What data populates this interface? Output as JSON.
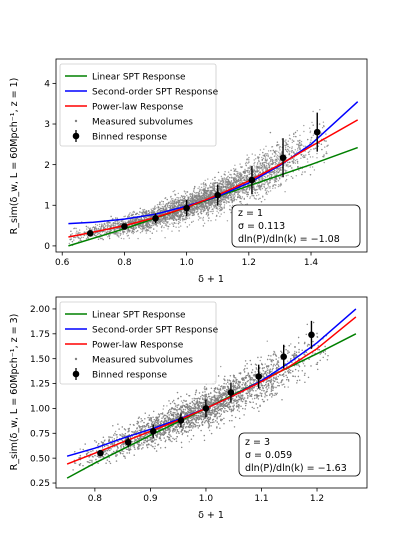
{
  "chart_data": [
    {
      "type": "scatter",
      "xlabel": "δ + 1",
      "ylabel": "R_sim(δ_w, L = 60Mpch⁻¹, z = 1)",
      "xlim": [
        0.58,
        1.58
      ],
      "ylim": [
        -0.15,
        4.6
      ],
      "x_ticks": [
        0.6,
        0.8,
        1.0,
        1.2,
        1.4
      ],
      "x_tick_labels": [
        "0.6",
        "0.8",
        "1.0",
        "1.2",
        "1.4"
      ],
      "y_ticks": [
        0,
        1,
        2,
        3,
        4
      ],
      "y_tick_labels": [
        "0",
        "1",
        "2",
        "3",
        "4"
      ],
      "legend_position": "top-left",
      "legend": [
        "Linear SPT Response",
        "Second-order SPT Response",
        "Power-law Response",
        "Measured subvolumes",
        "Binned response"
      ],
      "series": [
        {
          "name": "Linear SPT Response",
          "color": "#008000",
          "x": [
            0.62,
            0.8,
            1.0,
            1.2,
            1.4,
            1.55
          ],
          "y": [
            0.0,
            0.42,
            0.95,
            1.48,
            2.0,
            2.42
          ]
        },
        {
          "name": "Second-order SPT Response",
          "color": "#0000ff",
          "x": [
            0.62,
            0.7,
            0.8,
            0.9,
            1.0,
            1.1,
            1.2,
            1.3,
            1.4,
            1.55
          ],
          "y": [
            0.55,
            0.58,
            0.66,
            0.78,
            0.98,
            1.22,
            1.55,
            1.98,
            2.5,
            3.55
          ]
        },
        {
          "name": "Power-law Response",
          "color": "#ff0000",
          "x": [
            0.62,
            0.7,
            0.8,
            0.9,
            1.0,
            1.1,
            1.2,
            1.3,
            1.4,
            1.55
          ],
          "y": [
            0.22,
            0.34,
            0.5,
            0.7,
            0.95,
            1.25,
            1.6,
            2.0,
            2.45,
            3.1
          ]
        },
        {
          "name": "Binned response",
          "color": "#000000",
          "x": [
            0.69,
            0.8,
            0.9,
            1.0,
            1.1,
            1.21,
            1.31,
            1.42
          ],
          "y": [
            0.31,
            0.48,
            0.68,
            0.93,
            1.25,
            1.62,
            2.17,
            2.8
          ],
          "yerr": [
            0.05,
            0.07,
            0.12,
            0.2,
            0.26,
            0.35,
            0.48,
            0.48
          ]
        }
      ],
      "scatter_cloud": {
        "name": "Measured subvolumes",
        "color": "#808080",
        "x_range": [
          0.64,
          1.44
        ],
        "count": 5000
      },
      "annotation": [
        "z = 1",
        "σ = 0.113",
        "dln(P)/dln(k) = −1.08"
      ]
    },
    {
      "type": "scatter",
      "xlabel": "δ + 1",
      "ylabel": "R_sim(δ_w, L = 60Mpch⁻¹, z = 3)",
      "xlim": [
        0.73,
        1.29
      ],
      "ylim": [
        0.2,
        2.12
      ],
      "x_ticks": [
        0.8,
        0.9,
        1.0,
        1.1,
        1.2
      ],
      "x_tick_labels": [
        "0.8",
        "0.9",
        "1.0",
        "1.1",
        "1.2"
      ],
      "y_ticks": [
        0.25,
        0.5,
        0.75,
        1.0,
        1.25,
        1.5,
        1.75,
        2.0
      ],
      "y_tick_labels": [
        "0.25",
        "0.50",
        "0.75",
        "1.00",
        "1.25",
        "1.50",
        "1.75",
        "2.00"
      ],
      "legend_position": "top-left",
      "legend": [
        "Linear SPT Response",
        "Second-order SPT Response",
        "Power-law Response",
        "Measured subvolumes",
        "Binned response"
      ],
      "series": [
        {
          "name": "Linear SPT Response",
          "color": "#008000",
          "x": [
            0.75,
            0.8,
            0.9,
            1.0,
            1.1,
            1.2,
            1.27
          ],
          "y": [
            0.3,
            0.45,
            0.73,
            1.0,
            1.28,
            1.55,
            1.75
          ]
        },
        {
          "name": "Second-order SPT Response",
          "color": "#0000ff",
          "x": [
            0.75,
            0.8,
            0.85,
            0.9,
            0.95,
            1.0,
            1.05,
            1.1,
            1.15,
            1.2,
            1.27
          ],
          "y": [
            0.52,
            0.6,
            0.7,
            0.79,
            0.89,
            1.0,
            1.13,
            1.28,
            1.46,
            1.66,
            2.0
          ]
        },
        {
          "name": "Power-law Response",
          "color": "#ff0000",
          "x": [
            0.75,
            0.8,
            0.85,
            0.9,
            0.95,
            1.0,
            1.05,
            1.1,
            1.15,
            1.2,
            1.27
          ],
          "y": [
            0.44,
            0.55,
            0.66,
            0.77,
            0.88,
            1.0,
            1.13,
            1.27,
            1.42,
            1.6,
            1.92
          ]
        },
        {
          "name": "Binned response",
          "color": "#000000",
          "x": [
            0.81,
            0.86,
            0.905,
            0.955,
            1.0,
            1.045,
            1.095,
            1.14,
            1.19
          ],
          "y": [
            0.55,
            0.66,
            0.77,
            0.88,
            1.0,
            1.16,
            1.32,
            1.52,
            1.74
          ],
          "yerr": [
            0.02,
            0.05,
            0.07,
            0.07,
            0.09,
            0.1,
            0.12,
            0.12,
            0.14
          ]
        }
      ],
      "scatter_cloud": {
        "name": "Measured subvolumes",
        "color": "#808080",
        "x_range": [
          0.78,
          1.2
        ],
        "count": 5000
      },
      "annotation": [
        "z = 3",
        "σ = 0.059",
        "dln(P)/dln(k) = −1.63"
      ]
    }
  ]
}
